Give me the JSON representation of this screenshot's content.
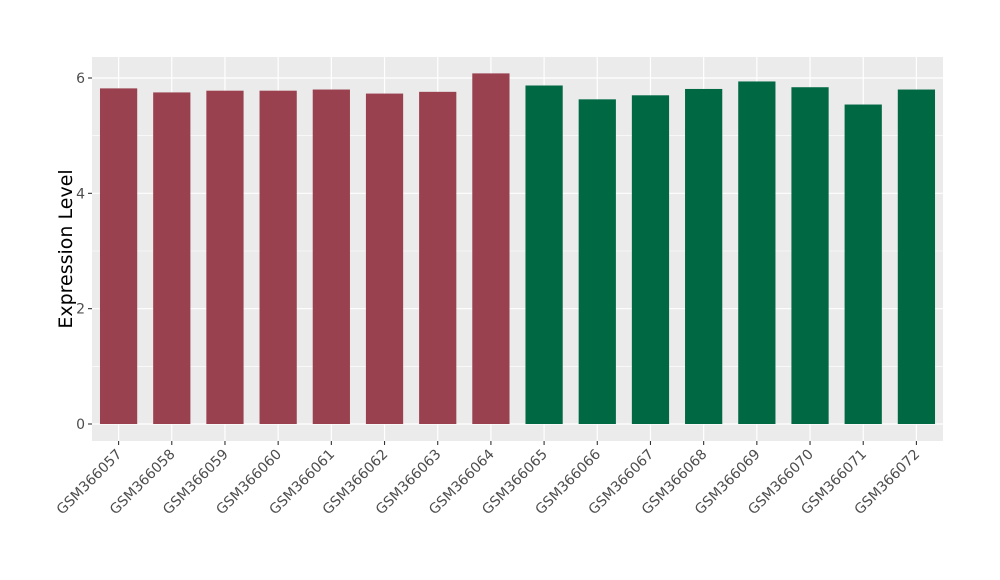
{
  "chart_data": {
    "type": "bar",
    "title": "",
    "xlabel": "",
    "ylabel": "Expression Level",
    "ylim": [
      0,
      6.3
    ],
    "yticks": [
      0,
      2,
      4,
      6
    ],
    "grid": true,
    "categories": [
      "GSM366057",
      "GSM366058",
      "GSM366059",
      "GSM366060",
      "GSM366061",
      "GSM366062",
      "GSM366063",
      "GSM366064",
      "GSM366065",
      "GSM366066",
      "GSM366067",
      "GSM366068",
      "GSM366069",
      "GSM366070",
      "GSM366071",
      "GSM366072"
    ],
    "values": [
      5.82,
      5.75,
      5.78,
      5.78,
      5.8,
      5.73,
      5.76,
      6.08,
      5.87,
      5.63,
      5.7,
      5.81,
      5.94,
      5.84,
      5.54,
      5.8
    ],
    "bar_colors": [
      "#9a4150",
      "#9a4150",
      "#9a4150",
      "#9a4150",
      "#9a4150",
      "#9a4150",
      "#9a4150",
      "#9a4150",
      "#016844",
      "#016844",
      "#016844",
      "#016844",
      "#016844",
      "#016844",
      "#016844",
      "#016844"
    ],
    "panel_background": "#ebebeb",
    "gridline_color": "#ffffff"
  }
}
